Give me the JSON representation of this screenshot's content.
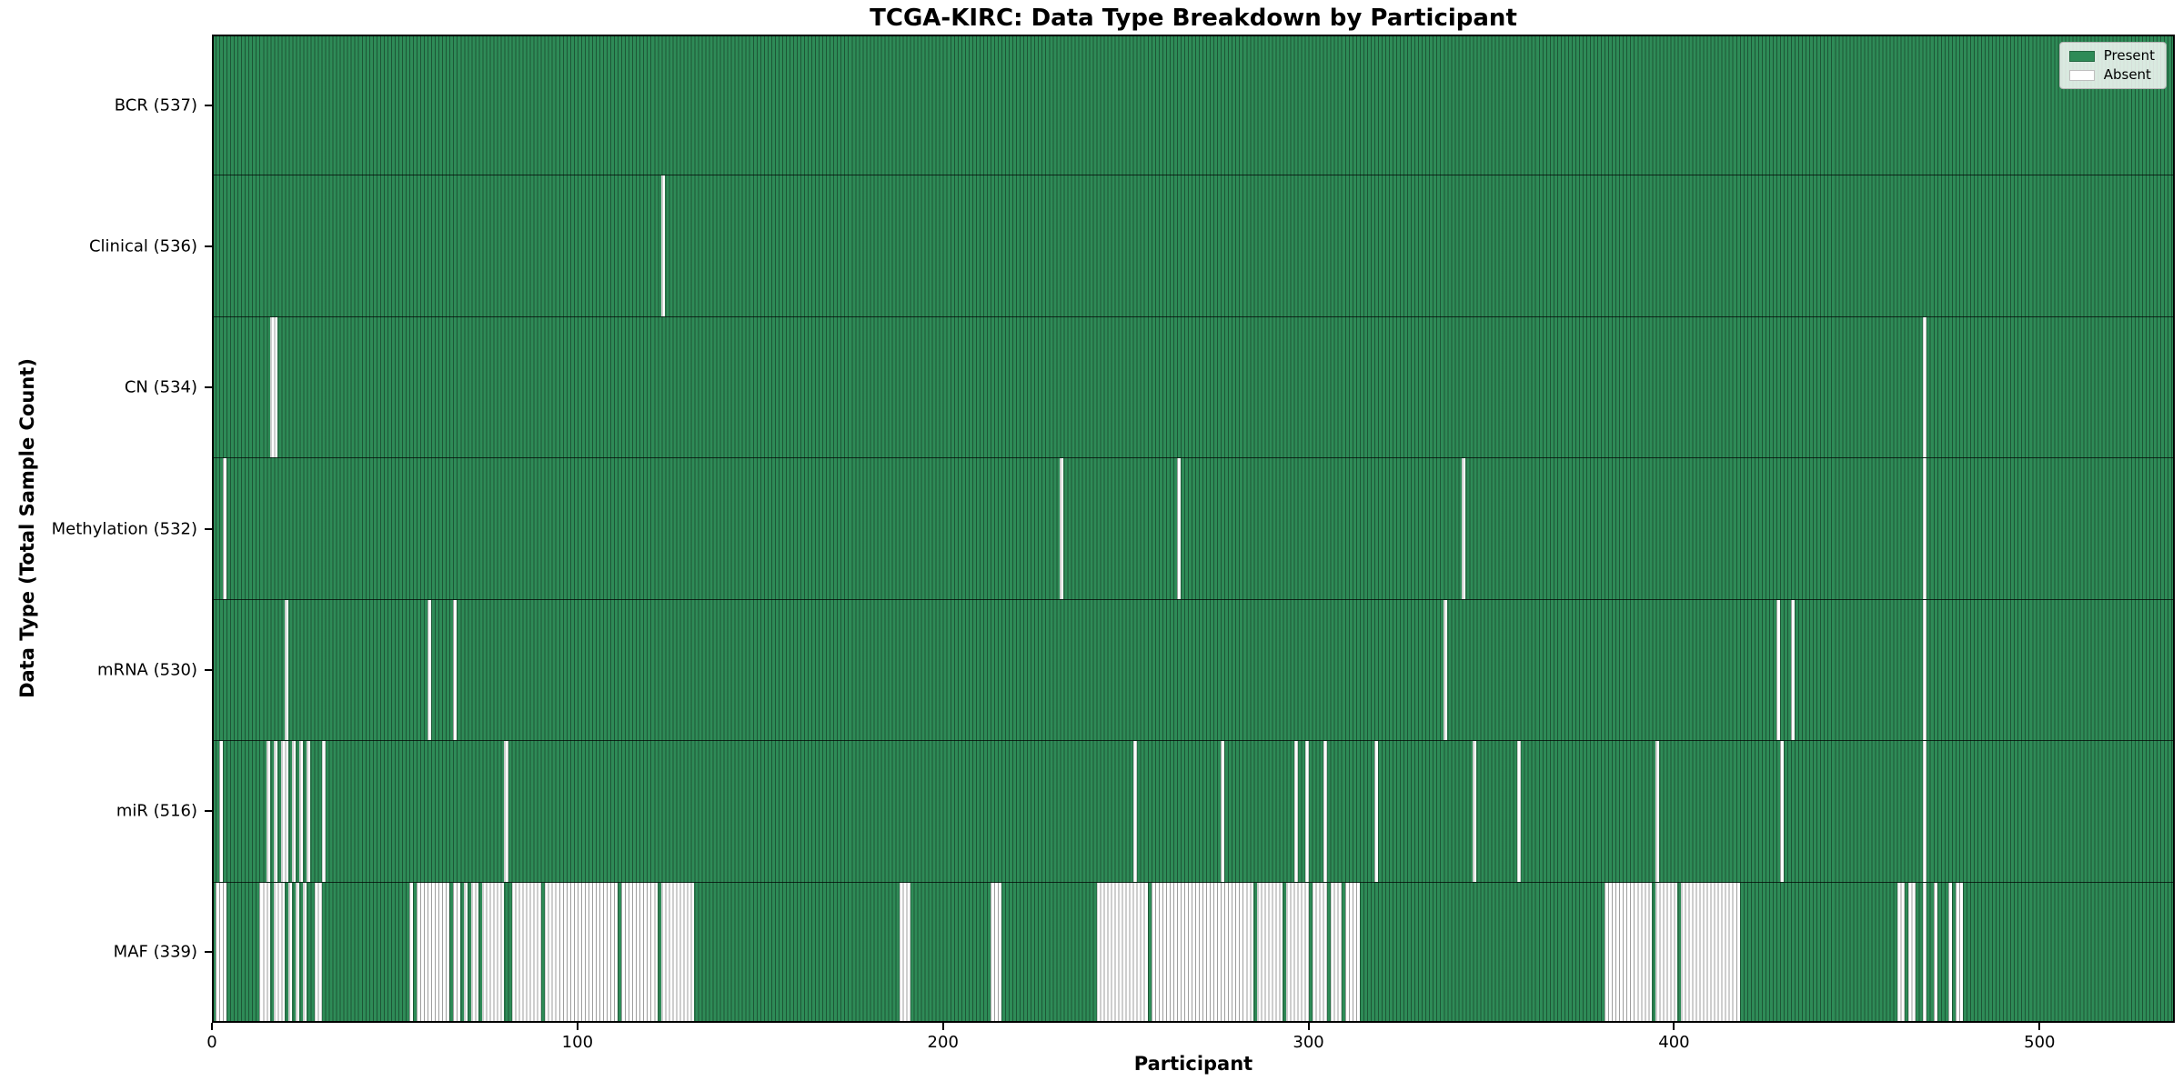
{
  "chart_data": {
    "type": "heatmap",
    "title": "TCGA-KIRC: Data Type Breakdown by Participant",
    "xlabel": "Participant",
    "ylabel": "Data Type (Total Sample Count)",
    "x_ticks": [
      0,
      100,
      200,
      300,
      400,
      500
    ],
    "x_range": [
      0,
      537
    ],
    "n_participants": 537,
    "grid": "column edges drawn as thin dark vertical lines, thin black row separators",
    "colors": {
      "present": "#2e8b57",
      "absent": "#ffffff",
      "edge": "rgba(0,0,0,0.38)",
      "frame": "#000000"
    },
    "legend": {
      "position": "upper-right",
      "items": [
        {
          "label": "Present",
          "color": "#2e8b57"
        },
        {
          "label": "Absent",
          "color": "#ffffff"
        }
      ]
    },
    "rows": [
      {
        "id": "bcr",
        "label": "BCR (537)",
        "present_count": 537,
        "absent": []
      },
      {
        "id": "clinical",
        "label": "Clinical (536)",
        "present_count": 536,
        "absent": [
          123
        ]
      },
      {
        "id": "cn",
        "label": "CN (534)",
        "present_count": 534,
        "absent": [
          [
            16,
            17
          ],
          468
        ]
      },
      {
        "id": "methylation",
        "label": "Methylation (532)",
        "present_count": 532,
        "absent": [
          3,
          232,
          264,
          342,
          468
        ]
      },
      {
        "id": "mrna",
        "label": "mRNA (530)",
        "present_count": 530,
        "absent": [
          20,
          59,
          66,
          337,
          428,
          432,
          468
        ]
      },
      {
        "id": "mir",
        "label": "miR (516)",
        "present_count": 516,
        "absent": [
          2,
          15,
          17,
          [
            19,
            20
          ],
          22,
          24,
          26,
          30,
          80,
          252,
          276,
          296,
          299,
          304,
          318,
          345,
          357,
          395,
          429,
          468
        ]
      },
      {
        "id": "maf",
        "label": "MAF (339)",
        "present_count": 339,
        "absent": [
          [
            1,
            3
          ],
          [
            13,
            15
          ],
          [
            17,
            19
          ],
          21,
          23,
          25,
          [
            28,
            29
          ],
          54,
          [
            56,
            64
          ],
          [
            66,
            67
          ],
          69,
          [
            71,
            72
          ],
          [
            74,
            79
          ],
          [
            82,
            89
          ],
          [
            91,
            110
          ],
          [
            112,
            121
          ],
          [
            123,
            131
          ],
          [
            188,
            190
          ],
          [
            213,
            215
          ],
          [
            242,
            255
          ],
          [
            257,
            284
          ],
          [
            286,
            292
          ],
          [
            294,
            299
          ],
          [
            301,
            304
          ],
          [
            306,
            308
          ],
          [
            310,
            313
          ],
          [
            381,
            393
          ],
          [
            395,
            400
          ],
          [
            402,
            417
          ],
          [
            461,
            462
          ],
          [
            464,
            465
          ],
          468,
          471,
          475,
          [
            477,
            478
          ]
        ]
      }
    ]
  }
}
